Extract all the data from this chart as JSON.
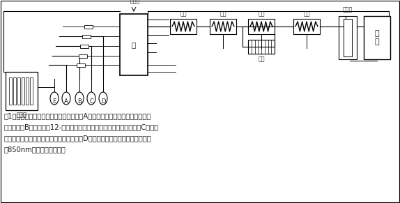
{
  "bg_color": "#ffffff",
  "line_color": "#1a1a1a",
  "text_color": "#1a1a1a",
  "fig_width": 5.74,
  "fig_height": 2.91,
  "dpi": 100,
  "caption_lines": [
    "图1说明：土壤待测液首先与调谐液（试剂A）混合，达到显色条件后与钼酸铵",
    "溶液（试剂B）反应形成12-磷钼酸混合液，再与酒石酸锑钾溶液（试剂C）反应",
    "形成钼蓝色，最后加入抗坏血酸溶液（试剂D），保持颜色稳定后进入流通池，",
    "在850nm检测并获取数据。"
  ],
  "caption_fontsize": 7.2,
  "label_fontsize": 6.0,
  "pump_label": "泵",
  "air_valve_label": "空气阀",
  "mix_label": "混合",
  "heat_label": "加热",
  "colorimeter_label": "比色池",
  "detector_label": "检\n测",
  "sampler_label": "取样器",
  "bottle_labels": [
    "A",
    "B",
    "C",
    "D"
  ],
  "e_label": "E"
}
